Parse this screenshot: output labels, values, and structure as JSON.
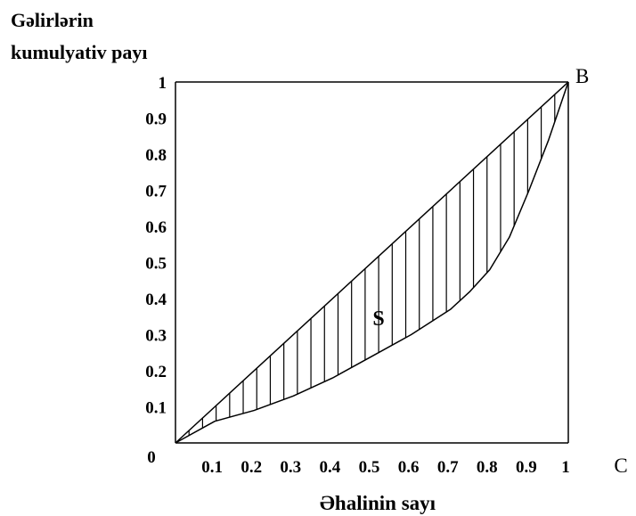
{
  "chart_data": {
    "type": "line",
    "title_lines": [
      "Gəlirlərin",
      "kumulyativ payı"
    ],
    "xlabel": "Əhalinin sayı",
    "xlim": [
      0,
      1
    ],
    "ylim": [
      0,
      1
    ],
    "x_ticks": [
      "0.1",
      "0.2",
      "0.3",
      "0.4",
      "0.5",
      "0.6",
      "0.7",
      "0.8",
      "0.9",
      "1"
    ],
    "y_ticks": [
      "0.1",
      "0.2",
      "0.3",
      "0.4",
      "0.5",
      "0.6",
      "0.7",
      "0.8",
      "0.9",
      "1"
    ],
    "origin_label": "0",
    "point_labels": {
      "B": "B",
      "C": "C"
    },
    "area_label": "S",
    "series": [
      {
        "x": [
          0,
          1
        ],
        "y": [
          0,
          1
        ]
      },
      {
        "x": [
          0,
          0.1,
          0.2,
          0.3,
          0.4,
          0.5,
          0.6,
          0.7,
          0.75,
          0.8,
          0.85,
          0.9,
          0.95,
          1.0
        ],
        "y": [
          0,
          0.06,
          0.09,
          0.13,
          0.18,
          0.24,
          0.3,
          0.37,
          0.42,
          0.48,
          0.57,
          0.7,
          0.84,
          1.0
        ]
      }
    ],
    "box": true,
    "hatching": "vertical",
    "grid": false,
    "legend": "none"
  }
}
